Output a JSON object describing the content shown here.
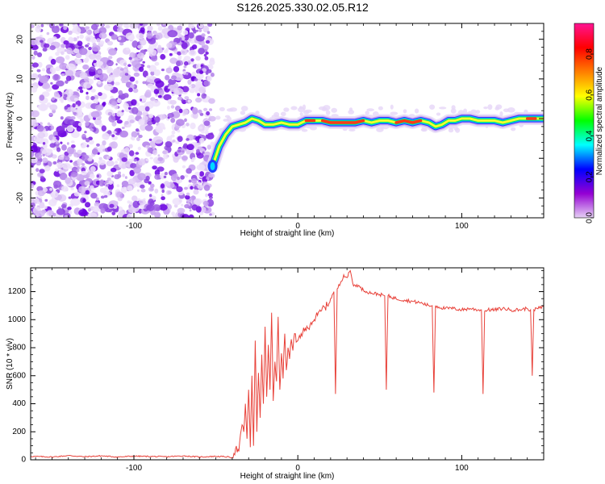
{
  "title": "S126.2025.330.02.05.R12",
  "chart_data": [
    {
      "type": "heatmap",
      "xlabel": "Height of straight line (km)",
      "ylabel": "Frequency (Hz)",
      "xlim": [
        -163,
        150
      ],
      "ylim": [
        -25,
        24
      ],
      "xticks": [
        -100,
        0,
        100
      ],
      "yticks": [
        -20,
        -10,
        0,
        10,
        20
      ],
      "noise_region_x": [
        -163,
        -52
      ],
      "ridge_track": [
        [
          -52,
          -12
        ],
        [
          -48,
          -7
        ],
        [
          -44,
          -4
        ],
        [
          -40,
          -2
        ],
        [
          -36,
          -1.5
        ],
        [
          -32,
          -1
        ],
        [
          -28,
          0
        ],
        [
          -24,
          -0.5
        ],
        [
          -20,
          -1.5
        ],
        [
          -15,
          -1.5
        ],
        [
          -10,
          -1
        ],
        [
          -5,
          -1.5
        ],
        [
          0,
          -1.5
        ],
        [
          5,
          -0.5
        ],
        [
          10,
          -0.5
        ],
        [
          15,
          -0.5
        ],
        [
          20,
          -1
        ],
        [
          25,
          -1
        ],
        [
          30,
          -1
        ],
        [
          35,
          -1
        ],
        [
          40,
          -0.5
        ],
        [
          45,
          -1
        ],
        [
          50,
          -0.5
        ],
        [
          55,
          -0.5
        ],
        [
          60,
          -1
        ],
        [
          65,
          -0.5
        ],
        [
          70,
          -1
        ],
        [
          75,
          -0.5
        ],
        [
          80,
          -1
        ],
        [
          84,
          -2
        ],
        [
          88,
          -1.5
        ],
        [
          92,
          -0.5
        ],
        [
          96,
          -0.5
        ],
        [
          100,
          0
        ],
        [
          105,
          0
        ],
        [
          110,
          -0.5
        ],
        [
          115,
          -0.5
        ],
        [
          120,
          -0.5
        ],
        [
          125,
          -1
        ],
        [
          130,
          -0.5
        ],
        [
          135,
          0
        ],
        [
          140,
          0
        ],
        [
          145,
          0
        ],
        [
          150,
          0
        ]
      ],
      "colorbar": {
        "label": "Normalized spectral amplitude",
        "ticks": [
          0.0,
          0.2,
          0.4,
          0.6,
          0.8
        ],
        "range": [
          0,
          0.95
        ],
        "colors": [
          "#e6d2f5",
          "#9400d3",
          "#0000ff",
          "#00ffff",
          "#00ff00",
          "#ffff00",
          "#ff7f00",
          "#ff0000",
          "#ff1493"
        ]
      }
    },
    {
      "type": "line",
      "xlabel": "Height of straight line (km)",
      "ylabel": "SNR (10 * v/v)",
      "xlim": [
        -163,
        150
      ],
      "ylim": [
        0,
        1370
      ],
      "xticks": [
        -100,
        0,
        100
      ],
      "yticks": [
        0,
        200,
        400,
        600,
        800,
        1000,
        1200
      ],
      "color": "#e8423a",
      "series": [
        {
          "x": [
            -163,
            -150,
            -140,
            -130,
            -120,
            -110,
            -100,
            -90,
            -80,
            -70,
            -60,
            -50,
            -45,
            -42,
            -40,
            -38,
            -36,
            -34,
            -33,
            -32,
            -31,
            -30,
            -29,
            -28,
            -27,
            -26,
            -25,
            -24,
            -23,
            -22,
            -21,
            -20,
            -19,
            -18,
            -17,
            -16,
            -15,
            -14,
            -13,
            -12,
            -11,
            -10,
            -9,
            -8,
            -7,
            -6,
            -5,
            -4,
            -3,
            -2,
            -1,
            0,
            2,
            4,
            6,
            8,
            10,
            12,
            14,
            16,
            18,
            20,
            22,
            23,
            24,
            26,
            28,
            30,
            32,
            34,
            36,
            38,
            40,
            42,
            45,
            50,
            53,
            54,
            55,
            60,
            65,
            70,
            75,
            80,
            82,
            83,
            84,
            86,
            90,
            95,
            100,
            105,
            110,
            112,
            113,
            114,
            116,
            120,
            125,
            130,
            135,
            140,
            142,
            143,
            144,
            146,
            150
          ],
          "y": [
            25,
            20,
            30,
            22,
            28,
            20,
            26,
            24,
            22,
            28,
            20,
            25,
            22,
            20,
            15,
            80,
            60,
            250,
            200,
            400,
            150,
            500,
            90,
            600,
            100,
            850,
            200,
            620,
            300,
            750,
            400,
            950,
            450,
            820,
            500,
            1050,
            420,
            700,
            560,
            1020,
            500,
            760,
            580,
            900,
            640,
            800,
            720,
            860,
            780,
            900,
            840,
            850,
            900,
            920,
            940,
            980,
            1000,
            1030,
            1060,
            1090,
            1100,
            1150,
            1200,
            470,
            1220,
            1260,
            1320,
            1300,
            1350,
            1240,
            1250,
            1230,
            1210,
            1200,
            1190,
            1180,
            1170,
            500,
            1170,
            1150,
            1140,
            1130,
            1120,
            1100,
            1100,
            480,
            1100,
            1090,
            1080,
            1080,
            1070,
            1080,
            1070,
            1070,
            470,
            1060,
            1070,
            1070,
            1080,
            1070,
            1070,
            1080,
            1070,
            600,
            1070,
            1080,
            1090
          ]
        }
      ]
    }
  ]
}
